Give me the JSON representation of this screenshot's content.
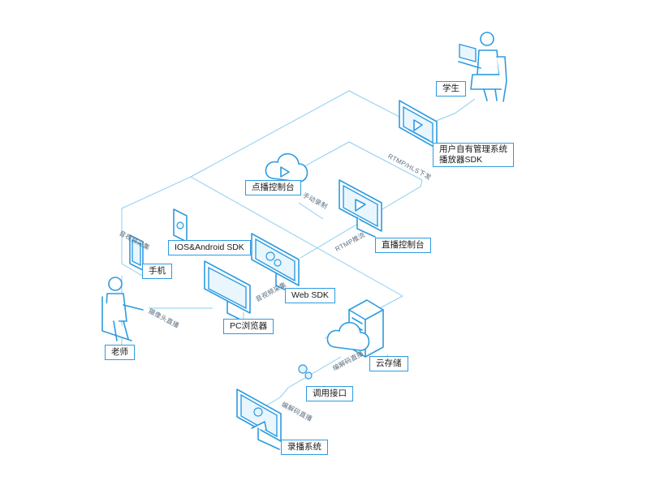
{
  "nodes": {
    "student": "学生",
    "player": [
      "用户自有管理系统",
      "播放器SDK"
    ],
    "vod_console": "点播控制台",
    "live_console": "直播控制台",
    "mobile_sdk": "IOS&Android SDK",
    "phone": "手机",
    "web_sdk": "Web SDK",
    "teacher": "老师",
    "pc_browser": "PC浏览器",
    "cloud_storage": "云存储",
    "api": "调用接口",
    "recording_system": "录播系统"
  },
  "edges": {
    "rtmp_hls": "RTMP/HLS下发",
    "manual_record": "手动录制",
    "audio_video_capture_1": "音视频采集",
    "rtmp_push": "RTMP推流",
    "audio_video_capture_2": "音视频采集",
    "camera_live": "摄像头直播",
    "encode_live_1": "编解码直播",
    "encode_live_2": "编解码直播"
  },
  "colors": {
    "accent": "#2d9be0",
    "line": "#8ecdf0"
  }
}
